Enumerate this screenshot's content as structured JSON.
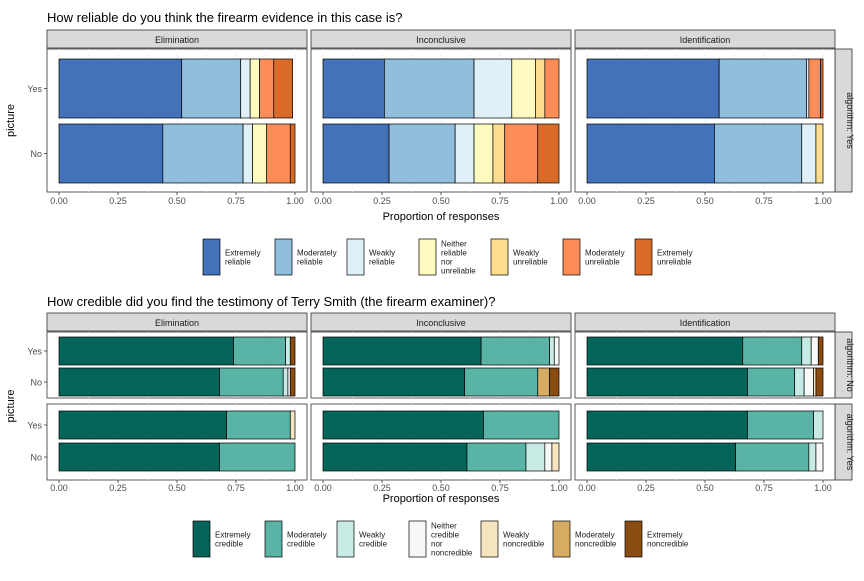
{
  "charts": [
    {
      "title": "How reliable do you think the firearm evidence in this case is?",
      "ylabel": "picture",
      "xlabel": "Proportion of responses",
      "facet_columns": [
        "Elimination",
        "Inconclusive",
        "Identification"
      ],
      "facet_rows": [
        "algorithm: Yes"
      ],
      "legend": {
        "labels": [
          [
            "Extremely",
            "reliable"
          ],
          [
            "Moderately",
            "reliable"
          ],
          [
            "Weakly",
            "reliable"
          ],
          [
            "Neither",
            "reliable",
            "nor",
            "unreliable"
          ],
          [
            "Weakly",
            "unreliable"
          ],
          [
            "Moderately",
            "unreliable"
          ],
          [
            "Extremely",
            "unreliable"
          ]
        ],
        "colors": [
          "#4472b8",
          "#92bedd",
          "#e0f0f8",
          "#fdfbc0",
          "#fddd8f",
          "#fc8d59",
          "#d96b28"
        ]
      }
    },
    {
      "title": "How credible did you find the testimony of Terry Smith (the firearm examiner)?",
      "ylabel": "picture",
      "xlabel": "Proportion of responses",
      "facet_columns": [
        "Elimination",
        "Inconclusive",
        "Identification"
      ],
      "facet_rows": [
        "algorithm: No",
        "algorithm: Yes"
      ],
      "legend": {
        "labels": [
          [
            "Extremely",
            "credible"
          ],
          [
            "Moderately",
            "credible"
          ],
          [
            "Weakly",
            "credible"
          ],
          [
            "Neither",
            "credible",
            "nor",
            "noncredible"
          ],
          [
            "Weakly",
            "noncredible"
          ],
          [
            "Moderately",
            "noncredible"
          ],
          [
            "Extremely",
            "noncredible"
          ]
        ],
        "colors": [
          "#05645a",
          "#5ab4a6",
          "#c8eae4",
          "#f7f9f8",
          "#f7e5c0",
          "#d6ac62",
          "#8a4c10"
        ]
      }
    }
  ],
  "chart_data": [
    {
      "type": "bar",
      "orientation": "horizontal",
      "stacked": true,
      "title": "How reliable do you think the firearm evidence in this case is?",
      "xlabel": "Proportion of responses",
      "ylabel": "picture",
      "xlim": [
        0,
        1
      ],
      "xticks": [
        "0.00",
        "0.25",
        "0.50",
        "0.75",
        "1.00"
      ],
      "categories": [
        "Yes",
        "No"
      ],
      "legend_position": "bottom",
      "grid": true,
      "panels": [
        {
          "column": "Elimination",
          "row": "algorithm: Yes",
          "bars": {
            "Yes": [
              0.52,
              0.25,
              0.04,
              0.04,
              0.0,
              0.06,
              0.08
            ],
            "No": [
              0.44,
              0.34,
              0.04,
              0.06,
              0.0,
              0.1,
              0.02
            ]
          }
        },
        {
          "column": "Inconclusive",
          "row": "algorithm: Yes",
          "bars": {
            "Yes": [
              0.26,
              0.38,
              0.16,
              0.1,
              0.04,
              0.06,
              0.0
            ],
            "No": [
              0.28,
              0.28,
              0.08,
              0.08,
              0.05,
              0.14,
              0.09
            ]
          }
        },
        {
          "column": "Identification",
          "row": "algorithm: Yes",
          "bars": {
            "Yes": [
              0.56,
              0.37,
              0.01,
              0.0,
              0.0,
              0.05,
              0.01
            ],
            "No": [
              0.54,
              0.37,
              0.06,
              0.0,
              0.03,
              0.0,
              0.0
            ]
          }
        }
      ]
    },
    {
      "type": "bar",
      "orientation": "horizontal",
      "stacked": true,
      "title": "How credible did you find the testimony of Terry Smith (the firearm examiner)?",
      "xlabel": "Proportion of responses",
      "ylabel": "picture",
      "xlim": [
        0,
        1
      ],
      "xticks": [
        "0.00",
        "0.25",
        "0.50",
        "0.75",
        "1.00"
      ],
      "categories": [
        "Yes",
        "No"
      ],
      "legend_position": "bottom",
      "grid": true,
      "panels": [
        {
          "column": "Elimination",
          "row": "algorithm: No",
          "bars": {
            "Yes": [
              0.74,
              0.22,
              0.02,
              0.0,
              0.0,
              0.0,
              0.02
            ],
            "No": [
              0.68,
              0.27,
              0.02,
              0.01,
              0.0,
              0.0,
              0.02
            ]
          }
        },
        {
          "column": "Inconclusive",
          "row": "algorithm: No",
          "bars": {
            "Yes": [
              0.67,
              0.29,
              0.02,
              0.02,
              0.0,
              0.0,
              0.0
            ],
            "No": [
              0.6,
              0.31,
              0.0,
              0.0,
              0.0,
              0.05,
              0.04
            ]
          }
        },
        {
          "column": "Identification",
          "row": "algorithm: No",
          "bars": {
            "Yes": [
              0.66,
              0.25,
              0.04,
              0.03,
              0.0,
              0.0,
              0.02
            ],
            "No": [
              0.68,
              0.2,
              0.04,
              0.04,
              0.01,
              0.0,
              0.03
            ]
          }
        },
        {
          "column": "Elimination",
          "row": "algorithm: Yes",
          "bars": {
            "Yes": [
              0.71,
              0.27,
              0.0,
              0.0,
              0.02,
              0.0,
              0.0
            ],
            "No": [
              0.68,
              0.32,
              0.0,
              0.0,
              0.0,
              0.0,
              0.0
            ]
          }
        },
        {
          "column": "Inconclusive",
          "row": "algorithm: Yes",
          "bars": {
            "Yes": [
              0.68,
              0.32,
              0.0,
              0.0,
              0.0,
              0.0,
              0.0
            ],
            "No": [
              0.61,
              0.25,
              0.08,
              0.03,
              0.03,
              0.0,
              0.0
            ]
          }
        },
        {
          "column": "Identification",
          "row": "algorithm: Yes",
          "bars": {
            "Yes": [
              0.68,
              0.28,
              0.04,
              0.0,
              0.0,
              0.0,
              0.0
            ],
            "No": [
              0.63,
              0.31,
              0.03,
              0.03,
              0.0,
              0.0,
              0.0
            ]
          }
        }
      ]
    }
  ]
}
